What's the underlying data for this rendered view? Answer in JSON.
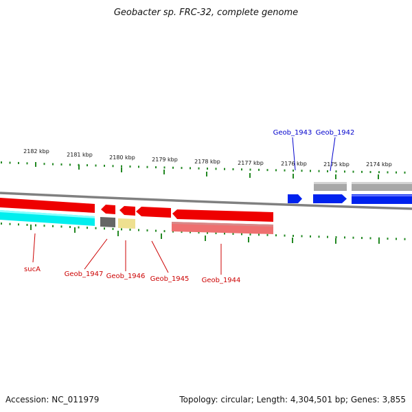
{
  "title": "Geobacter sp. FRC-32, complete genome",
  "footer": {
    "accession": "Accession: NC_011979",
    "summary": "Topology: circular; Length: 4,304,501 bp; Genes: 3,855"
  },
  "colors": {
    "tick": "#228822",
    "backbone": "#808080",
    "forward_label": "#0000cc",
    "reverse_label": "#cc0000",
    "red_gene": "#ee0000",
    "blue_gene": "#0022ee",
    "cyan_gene": "#00eeee",
    "gray_gene": "#a8a8a8",
    "dark_gray_gene": "#666666",
    "yellow_gene": "#eee090",
    "pink_gene": "#ee7070"
  },
  "scale": {
    "unit": "kbp",
    "labels": [
      "2182 kbp",
      "2181 kbp",
      "2180 kbp",
      "2179 kbp",
      "2178 kbp",
      "2177 kbp",
      "2176 kbp",
      "2175 kbp",
      "2174 kbp"
    ]
  },
  "gene_labels": {
    "top": [
      "Geob_1943",
      "Geob_1942"
    ],
    "bottom": [
      "sucA",
      "Geob_1947",
      "Geob_1946",
      "Geob_1945",
      "Geob_1944"
    ]
  }
}
